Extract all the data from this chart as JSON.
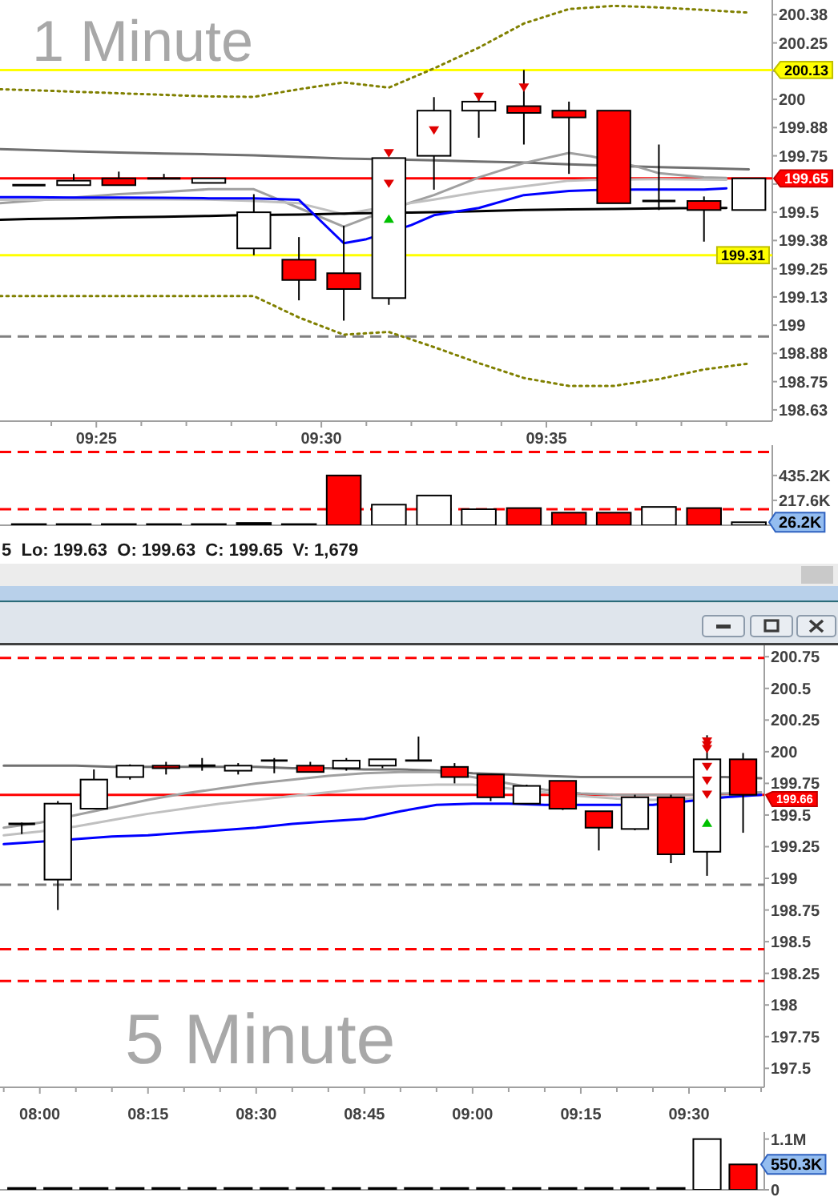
{
  "chart_data": [
    {
      "type": "candlestick",
      "title": "1 Minute",
      "x": [
        9.3917,
        9.4083,
        9.425,
        9.4417,
        9.4583,
        9.475,
        9.4917,
        9.5083,
        9.525,
        9.5417,
        9.5583,
        9.575,
        9.5917,
        9.6083,
        9.625,
        9.6417,
        9.6583
      ],
      "ohlc": [
        [
          199.62,
          199.62,
          199.62,
          199.62
        ],
        [
          199.62,
          199.67,
          199.62,
          199.64
        ],
        [
          199.65,
          199.68,
          199.62,
          199.62
        ],
        [
          199.65,
          199.67,
          199.65,
          199.65
        ],
        [
          199.63,
          199.65,
          199.63,
          199.65
        ],
        [
          199.34,
          199.58,
          199.31,
          199.5
        ],
        [
          199.29,
          199.39,
          199.11,
          199.2
        ],
        [
          199.23,
          199.44,
          199.02,
          199.16
        ],
        [
          199.12,
          199.74,
          199.09,
          199.74
        ],
        [
          199.75,
          200.01,
          199.6,
          199.95
        ],
        [
          199.95,
          200.02,
          199.83,
          199.99
        ],
        [
          199.97,
          200.13,
          199.8,
          199.94
        ],
        [
          199.95,
          199.99,
          199.67,
          199.92
        ],
        [
          199.95,
          199.95,
          199.54,
          199.54
        ],
        [
          199.55,
          199.8,
          199.51,
          199.55
        ],
        [
          199.55,
          199.57,
          199.37,
          199.51
        ],
        [
          199.51,
          199.65,
          199.51,
          199.65
        ]
      ],
      "colors": [
        "#000000",
        "#ffffff",
        "#ff0000",
        "#000000",
        "#ffffff",
        "#ffffff",
        "#ff0000",
        "#ff0000",
        "#ffffff",
        "#ffffff",
        "#ffffff",
        "#ff0000",
        "#ff0000",
        "#ff0000",
        "#000000",
        "#ff0000",
        "#ffffff"
      ],
      "series": [
        {
          "type": "line",
          "color": "#808000",
          "line_style": "dotted",
          "x": [
            9.381,
            9.3917,
            9.4083,
            9.425,
            9.4417,
            9.4583,
            9.475,
            9.4917,
            9.5083,
            9.525,
            9.5417,
            9.5583,
            9.575,
            9.5917,
            9.6083,
            9.625,
            9.6417,
            9.6583
          ],
          "values": [
            200.045,
            200.041,
            200.034,
            200.027,
            200.02,
            200.013,
            200.011,
            200.045,
            200.075,
            200.052,
            200.137,
            200.229,
            200.336,
            200.4,
            200.414,
            200.407,
            200.396,
            200.384
          ]
        },
        {
          "type": "line",
          "color": "#808000",
          "line_style": "dotted",
          "x": [
            9.381,
            9.3917,
            9.4083,
            9.425,
            9.4417,
            9.4583,
            9.475,
            9.4917,
            9.5083,
            9.525,
            9.5417,
            9.5583,
            9.575,
            9.5917,
            9.6083,
            9.625,
            9.6417,
            9.6583
          ],
          "values": [
            199.129,
            199.129,
            199.129,
            199.129,
            199.129,
            199.129,
            199.129,
            199.034,
            198.958,
            198.97,
            198.903,
            198.832,
            198.766,
            198.731,
            198.731,
            198.761,
            198.804,
            198.83
          ]
        },
        {
          "type": "line",
          "color": "#707070",
          "x": [
            9.381,
            9.3917,
            9.4083,
            9.425,
            9.4417,
            9.4583,
            9.475,
            9.4917,
            9.5083,
            9.5417,
            9.5583,
            9.575,
            9.5917,
            9.625,
            9.6417,
            9.6583
          ],
          "values": [
            199.78,
            199.776,
            199.77,
            199.765,
            199.76,
            199.757,
            199.752,
            199.745,
            199.738,
            199.73,
            199.725,
            199.72,
            199.712,
            199.7,
            199.695,
            199.69
          ]
        },
        {
          "type": "line",
          "color": "#a0a0a0",
          "x": [
            9.381,
            9.3917,
            9.4083,
            9.425,
            9.4417,
            9.4583,
            9.475,
            9.4917,
            9.5083,
            9.5167,
            9.5333,
            9.5417,
            9.5583,
            9.575,
            9.5917,
            9.6,
            9.6167,
            9.625,
            9.6417,
            9.65
          ],
          "values": [
            199.54,
            199.55,
            199.565,
            199.58,
            199.59,
            199.602,
            199.602,
            199.519,
            199.436,
            199.474,
            199.544,
            199.576,
            199.654,
            199.718,
            199.763,
            199.748,
            199.703,
            199.673,
            199.655,
            199.652
          ]
        },
        {
          "type": "line",
          "color": "#c0c0c0",
          "x": [
            9.381,
            9.3917,
            9.4083,
            9.425,
            9.4417,
            9.4583,
            9.475,
            9.4917,
            9.5083,
            9.5167,
            9.5333,
            9.5417,
            9.5583,
            9.575,
            9.5917,
            9.6,
            9.6167,
            9.625,
            9.6417,
            9.65
          ],
          "values": [
            199.555,
            199.555,
            199.556,
            199.557,
            199.557,
            199.556,
            199.55,
            199.54,
            199.491,
            199.509,
            199.541,
            199.556,
            199.59,
            199.615,
            199.64,
            199.643,
            199.646,
            199.647,
            199.645,
            199.644
          ]
        },
        {
          "type": "line",
          "color": "#000000",
          "x": [
            9.381,
            9.3917,
            9.4083,
            9.425,
            9.4417,
            9.4583,
            9.4667,
            9.4833,
            9.4917,
            9.5083,
            9.5167,
            9.5333,
            9.5417,
            9.5583,
            9.575,
            9.5917,
            9.6083,
            9.625,
            9.6333,
            9.65
          ],
          "values": [
            199.467,
            199.47,
            199.473,
            199.477,
            199.48,
            199.484,
            199.486,
            199.489,
            199.49,
            199.494,
            199.496,
            199.499,
            199.5,
            199.505,
            199.51,
            199.513,
            199.515,
            199.517,
            199.518,
            199.519
          ]
        },
        {
          "type": "line",
          "color": "#0000ff",
          "x": [
            9.381,
            9.3917,
            9.4083,
            9.425,
            9.4417,
            9.4583,
            9.475,
            9.4917,
            9.5083,
            9.5167,
            9.5333,
            9.5417,
            9.5583,
            9.575,
            9.5917,
            9.6,
            9.6167,
            9.625,
            9.6417,
            9.65
          ],
          "values": [
            199.567,
            199.567,
            199.565,
            199.565,
            199.564,
            199.562,
            199.562,
            199.555,
            199.363,
            199.381,
            199.443,
            199.487,
            199.519,
            199.576,
            199.594,
            199.598,
            199.601,
            199.601,
            199.601,
            199.606
          ]
        },
        {
          "type": "scatter",
          "color": "#e00000",
          "marker": "triangle-down",
          "x": [
            9.525,
            9.525,
            9.5417,
            9.5583,
            9.575
          ],
          "values": [
            199.761,
            199.626,
            199.862,
            200.011,
            200.052
          ]
        },
        {
          "type": "scatter",
          "color": "#00c000",
          "marker": "triangle",
          "x": [
            9.525
          ],
          "values": [
            199.472
          ]
        }
      ],
      "xlim": [
        9.381,
        9.667
      ],
      "xticks": [
        {
          "value": 9.4,
          "label": null
        },
        {
          "value": 9.41667,
          "label": "09:25"
        },
        {
          "value": 9.43333,
          "label": null
        },
        {
          "value": 9.45,
          "label": null
        },
        {
          "value": 9.46667,
          "label": null
        },
        {
          "value": 9.48333,
          "label": null
        },
        {
          "value": 9.5,
          "label": "09:30"
        },
        {
          "value": 9.51667,
          "label": null
        },
        {
          "value": 9.53333,
          "label": null
        },
        {
          "value": 9.55,
          "label": null
        },
        {
          "value": 9.56667,
          "label": null
        },
        {
          "value": 9.58333,
          "label": "09:35"
        },
        {
          "value": 9.6,
          "label": null
        },
        {
          "value": 9.61667,
          "label": null
        },
        {
          "value": 9.63333,
          "label": null
        },
        {
          "value": 9.65,
          "label": null
        }
      ],
      "ylim": [
        198.575,
        200.44
      ],
      "yticks": [
        {
          "value": 200.375,
          "label": "200.38"
        },
        200.25,
        {
          "value": 200.125,
          "label": null
        },
        200,
        {
          "value": 199.875,
          "label": "199.88"
        },
        199.75,
        {
          "value": 199.625,
          "label": null
        },
        199.5,
        {
          "value": 199.375,
          "label": "199.38"
        },
        199.25,
        {
          "value": 199.125,
          "label": "199.13"
        },
        199,
        {
          "value": 198.875,
          "label": "198.88"
        },
        198.75,
        {
          "value": 198.625,
          "label": "198.63"
        }
      ],
      "ref_lines": [
        {
          "axis": "y",
          "value": 200.13,
          "label": "200.13",
          "color": "#ffff00"
        },
        {
          "axis": "y",
          "value": 199.65,
          "label": "199.65",
          "color": "#ff0000"
        },
        {
          "axis": "y",
          "value": 199.31,
          "label": "199.31",
          "color": "#ffff00"
        },
        {
          "axis": "y",
          "value": 198.95,
          "color": "#808080",
          "line_style": "dashed"
        }
      ]
    },
    {
      "type": "bar",
      "x": [
        9.3917,
        9.4083,
        9.425,
        9.4417,
        9.4583,
        9.475,
        9.4917,
        9.5083,
        9.525,
        9.5417,
        9.5583,
        9.575,
        9.5917,
        9.6083,
        9.625,
        9.6417,
        9.6583
      ],
      "values": [
        10000,
        10000,
        10000,
        10000,
        10000,
        20000,
        10000,
        435200,
        180000,
        260000,
        140000,
        150000,
        110000,
        110000,
        160000,
        150000,
        26200
      ],
      "colors": [
        "#000000",
        "#000000",
        "#000000",
        "#000000",
        "#000000",
        "#000000",
        "#000000",
        "#ff0000",
        "#ffffff",
        "#ffffff",
        "#ffffff",
        "#ff0000",
        "#ff0000",
        "#ff0000",
        "#ffffff",
        "#ff0000",
        "#ffffff"
      ],
      "xlim": [
        9.381,
        9.667
      ],
      "ylim": [
        0,
        700000
      ],
      "yticks": [
        {
          "value": 435200,
          "label": "435.2K"
        },
        {
          "value": 217600,
          "label": "217.6K"
        },
        {
          "value": 26200,
          "label": "26.2K"
        }
      ],
      "tick_labels": "y",
      "ref_lines": [
        {
          "axis": "y",
          "value": 640000,
          "color": "#ff0000",
          "line_style": "dashed"
        },
        {
          "axis": "y",
          "value": 140000,
          "color": "#ff0000",
          "line_style": "dashed"
        }
      ],
      "annotations": [
        "5  Lo: 199.63  O: 199.63  C: 199.65  V: 1,679"
      ]
    },
    {
      "type": "candlestick",
      "title": "5 Minute",
      "x": [
        7.9583,
        8.0417,
        8.125,
        8.2083,
        8.2917,
        8.375,
        8.4583,
        8.5417,
        8.625,
        8.7083,
        8.7917,
        8.875,
        8.9583,
        9.0417,
        9.125,
        9.2083,
        9.2917,
        9.375,
        9.4583,
        9.5417,
        9.625
      ],
      "ohlc": [
        [
          199.42,
          199.44,
          199.35,
          199.43
        ],
        [
          198.99,
          199.61,
          198.75,
          199.59
        ],
        [
          199.55,
          199.86,
          199.55,
          199.78
        ],
        [
          199.8,
          199.9,
          199.78,
          199.89
        ],
        [
          199.89,
          199.92,
          199.82,
          199.87
        ],
        [
          199.89,
          199.95,
          199.85,
          199.89
        ],
        [
          199.85,
          199.91,
          199.82,
          199.89
        ],
        [
          199.93,
          199.95,
          199.83,
          199.93
        ],
        [
          199.89,
          199.92,
          199.84,
          199.84
        ],
        [
          199.87,
          199.95,
          199.85,
          199.93
        ],
        [
          199.89,
          199.94,
          199.87,
          199.94
        ],
        [
          199.93,
          200.12,
          199.93,
          199.93
        ],
        [
          199.88,
          199.91,
          199.75,
          199.8
        ],
        [
          199.82,
          199.82,
          199.61,
          199.64
        ],
        [
          199.59,
          199.74,
          199.59,
          199.73
        ],
        [
          199.77,
          199.77,
          199.54,
          199.55
        ],
        [
          199.53,
          199.53,
          199.22,
          199.4
        ],
        [
          199.39,
          199.66,
          199.38,
          199.64
        ],
        [
          199.64,
          199.66,
          199.12,
          199.19
        ],
        [
          199.21,
          200.13,
          199.02,
          199.94
        ],
        [
          199.94,
          199.99,
          199.36,
          199.66
        ]
      ],
      "colors": [
        "#000000",
        "#ffffff",
        "#ffffff",
        "#ffffff",
        "#ff0000",
        "#000000",
        "#ffffff",
        "#000000",
        "#ff0000",
        "#ffffff",
        "#ffffff",
        "#000000",
        "#ff0000",
        "#ff0000",
        "#ffffff",
        "#ff0000",
        "#ff0000",
        "#ffffff",
        "#ff0000",
        "#ffffff",
        "#ff0000"
      ],
      "series": [
        {
          "type": "line",
          "color": "#707070",
          "x": [
            7.9167,
            8,
            8.0833,
            8.1667,
            8.25,
            8.3333,
            8.4167,
            8.5,
            8.5833,
            8.6667,
            8.75,
            8.8333,
            8.9167,
            9,
            9.0833,
            9.1667,
            9.25,
            9.3333,
            9.4167,
            9.5,
            9.5833,
            9.6667
          ],
          "values": [
            199.89,
            199.89,
            199.89,
            199.88,
            199.88,
            199.88,
            199.88,
            199.88,
            199.87,
            199.87,
            199.86,
            199.86,
            199.85,
            199.83,
            199.82,
            199.81,
            199.8,
            199.8,
            199.8,
            199.8,
            199.8,
            199.79
          ]
        },
        {
          "type": "line",
          "color": "#a0a0a0",
          "x": [
            7.9167,
            8,
            8.0833,
            8.1667,
            8.25,
            8.3333,
            8.4167,
            8.5,
            8.5833,
            8.6667,
            8.75,
            8.8333,
            8.9167,
            9,
            9.0833,
            9.1667,
            9.25,
            9.3333,
            9.4167,
            9.5,
            9.5833,
            9.6667
          ],
          "values": [
            199.4,
            199.44,
            199.5,
            199.56,
            199.62,
            199.67,
            199.71,
            199.75,
            199.78,
            199.81,
            199.83,
            199.84,
            199.84,
            199.8,
            199.75,
            199.7,
            199.67,
            199.66,
            199.66,
            199.66,
            199.67,
            199.68
          ]
        },
        {
          "type": "line",
          "color": "#c0c0c0",
          "x": [
            7.9167,
            8,
            8.0833,
            8.1667,
            8.25,
            8.3333,
            8.4167,
            8.5,
            8.5833,
            8.6667,
            8.75,
            8.8333,
            8.9167,
            9,
            9.0833,
            9.1667,
            9.25,
            9.3333,
            9.4167,
            9.5,
            9.5833,
            9.6667
          ],
          "values": [
            199.34,
            199.37,
            199.41,
            199.46,
            199.51,
            199.55,
            199.59,
            199.62,
            199.65,
            199.68,
            199.71,
            199.73,
            199.74,
            199.74,
            199.71,
            199.68,
            199.65,
            199.63,
            199.62,
            199.63,
            199.65,
            199.66
          ]
        },
        {
          "type": "line",
          "color": "#0000ff",
          "x": [
            7.9167,
            8,
            8.0833,
            8.1667,
            8.25,
            8.3333,
            8.4167,
            8.5,
            8.5833,
            8.6667,
            8.75,
            8.8333,
            8.9167,
            9,
            9.0833,
            9.1667,
            9.25,
            9.3333,
            9.4167,
            9.5,
            9.5833,
            9.6667
          ],
          "values": [
            199.27,
            199.29,
            199.31,
            199.33,
            199.34,
            199.36,
            199.38,
            199.4,
            199.43,
            199.45,
            199.47,
            199.53,
            199.58,
            199.59,
            199.59,
            199.58,
            199.58,
            199.58,
            199.58,
            199.61,
            199.64,
            199.66
          ]
        },
        {
          "type": "scatter",
          "color": "#e00000",
          "marker": "triangle-down",
          "x": [
            9.5417,
            9.5417,
            9.5417,
            9.5417,
            9.5417,
            9.5417
          ],
          "values": [
            200.08,
            200.05,
            200.02,
            199.88,
            199.77,
            199.66
          ]
        },
        {
          "type": "scatter",
          "color": "#00c000",
          "marker": "triangle",
          "x": [
            9.5417
          ],
          "values": [
            199.44
          ]
        }
      ],
      "xlim": [
        7.908,
        9.674
      ],
      "xticks": [
        {
          "value": 7.91667,
          "label": null
        },
        {
          "value": 8,
          "label": "08:00"
        },
        {
          "value": 8.08333,
          "label": null
        },
        {
          "value": 8.16667,
          "label": null
        },
        {
          "value": 8.25,
          "label": "08:15"
        },
        {
          "value": 8.33333,
          "label": null
        },
        {
          "value": 8.41667,
          "label": null
        },
        {
          "value": 8.5,
          "label": "08:30"
        },
        {
          "value": 8.58333,
          "label": null
        },
        {
          "value": 8.66667,
          "label": null
        },
        {
          "value": 8.75,
          "label": "08:45"
        },
        {
          "value": 8.83333,
          "label": null
        },
        {
          "value": 8.91667,
          "label": null
        },
        {
          "value": 9,
          "label": "09:00"
        },
        {
          "value": 9.08333,
          "label": null
        },
        {
          "value": 9.16667,
          "label": null
        },
        {
          "value": 9.25,
          "label": "09:15"
        },
        {
          "value": 9.33333,
          "label": null
        },
        {
          "value": 9.41667,
          "label": null
        },
        {
          "value": 9.5,
          "label": "09:30"
        },
        {
          "value": 9.58333,
          "label": null
        },
        {
          "value": 9.66667,
          "label": null
        }
      ],
      "ylim": [
        197.35,
        200.84
      ],
      "yticks": [
        200.75,
        200.5,
        200.25,
        200,
        199.75,
        199.5,
        199.25,
        199,
        198.75,
        198.5,
        198.25,
        198,
        197.75,
        197.5
      ],
      "ref_lines": [
        {
          "axis": "y",
          "value": 200.74,
          "color": "#ff0000",
          "line_style": "dashed"
        },
        {
          "axis": "y",
          "value": 199.66,
          "label": "199.66",
          "color": "#ff0000"
        },
        {
          "axis": "y",
          "value": 198.95,
          "color": "#808080",
          "line_style": "dashed"
        },
        {
          "axis": "y",
          "value": 198.44,
          "color": "#ff0000",
          "line_style": "dashed"
        },
        {
          "axis": "y",
          "value": 198.19,
          "color": "#ff0000",
          "line_style": "dashed"
        }
      ]
    },
    {
      "type": "bar",
      "x": [
        7.9583,
        8.0417,
        8.125,
        8.2083,
        8.2917,
        8.375,
        8.4583,
        8.5417,
        8.625,
        8.7083,
        8.7917,
        8.875,
        8.9583,
        9.0417,
        9.125,
        9.2083,
        9.2917,
        9.375,
        9.4583,
        9.5417,
        9.625
      ],
      "values": [
        40000,
        40000,
        40000,
        40000,
        40000,
        40000,
        40000,
        40000,
        40000,
        40000,
        40000,
        40000,
        40000,
        40000,
        40000,
        40000,
        40000,
        40000,
        40000,
        1100000,
        550300
      ],
      "colors": [
        "#000000",
        "#000000",
        "#000000",
        "#000000",
        "#000000",
        "#000000",
        "#000000",
        "#000000",
        "#000000",
        "#000000",
        "#000000",
        "#000000",
        "#000000",
        "#000000",
        "#000000",
        "#000000",
        "#000000",
        "#000000",
        "#000000",
        "#ffffff",
        "#ff0000"
      ],
      "xlim": [
        7.908,
        9.674
      ],
      "ylim": [
        0,
        1250000
      ],
      "yticks": [
        {
          "value": 1100000,
          "label": "1.1M"
        },
        {
          "value": 550300,
          "label": "550.3K"
        },
        0
      ],
      "tick_labels": "y"
    }
  ]
}
